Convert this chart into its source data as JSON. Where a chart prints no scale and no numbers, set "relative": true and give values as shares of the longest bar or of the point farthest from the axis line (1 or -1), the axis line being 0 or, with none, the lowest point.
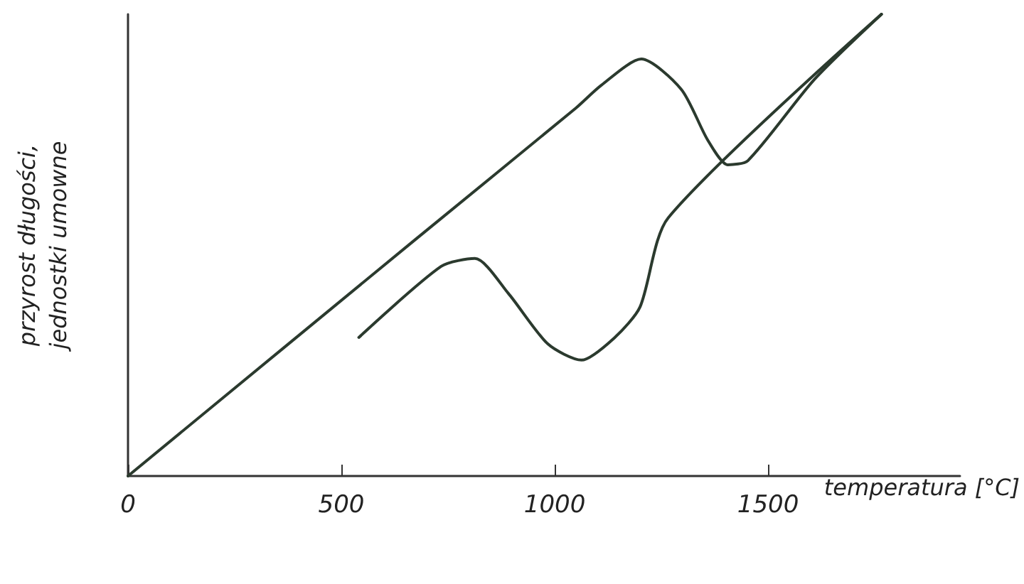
{
  "chart_data": {
    "type": "line",
    "relative": true,
    "xlabel": "temperatura [°C]",
    "ylabel": "przyrost długości,\njednostki umowne",
    "xlim": [
      0,
      1950
    ],
    "xticks": [
      0,
      500,
      1000,
      1500
    ],
    "grid": false,
    "marker": "none",
    "line_style": "solid",
    "series": [
      {
        "color": "#2b3a2e",
        "x": [
          0,
          672,
          1050,
          1109,
          1203,
          1297,
          1359,
          1406,
          1453,
          1609,
          1766
        ],
        "values": [
          0,
          0.511,
          0.797,
          0.846,
          0.903,
          0.837,
          0.727,
          0.674,
          0.683,
          0.859,
          1.0
        ]
      },
      {
        "color": "#2b3a2e",
        "x": [
          1766,
          1266,
          1200,
          1141,
          1063,
          984,
          891,
          813,
          734,
          541
        ],
        "values": [
          1.0,
          0.559,
          0.366,
          0.3,
          0.251,
          0.286,
          0.396,
          0.471,
          0.454,
          0.3
        ]
      }
    ]
  }
}
